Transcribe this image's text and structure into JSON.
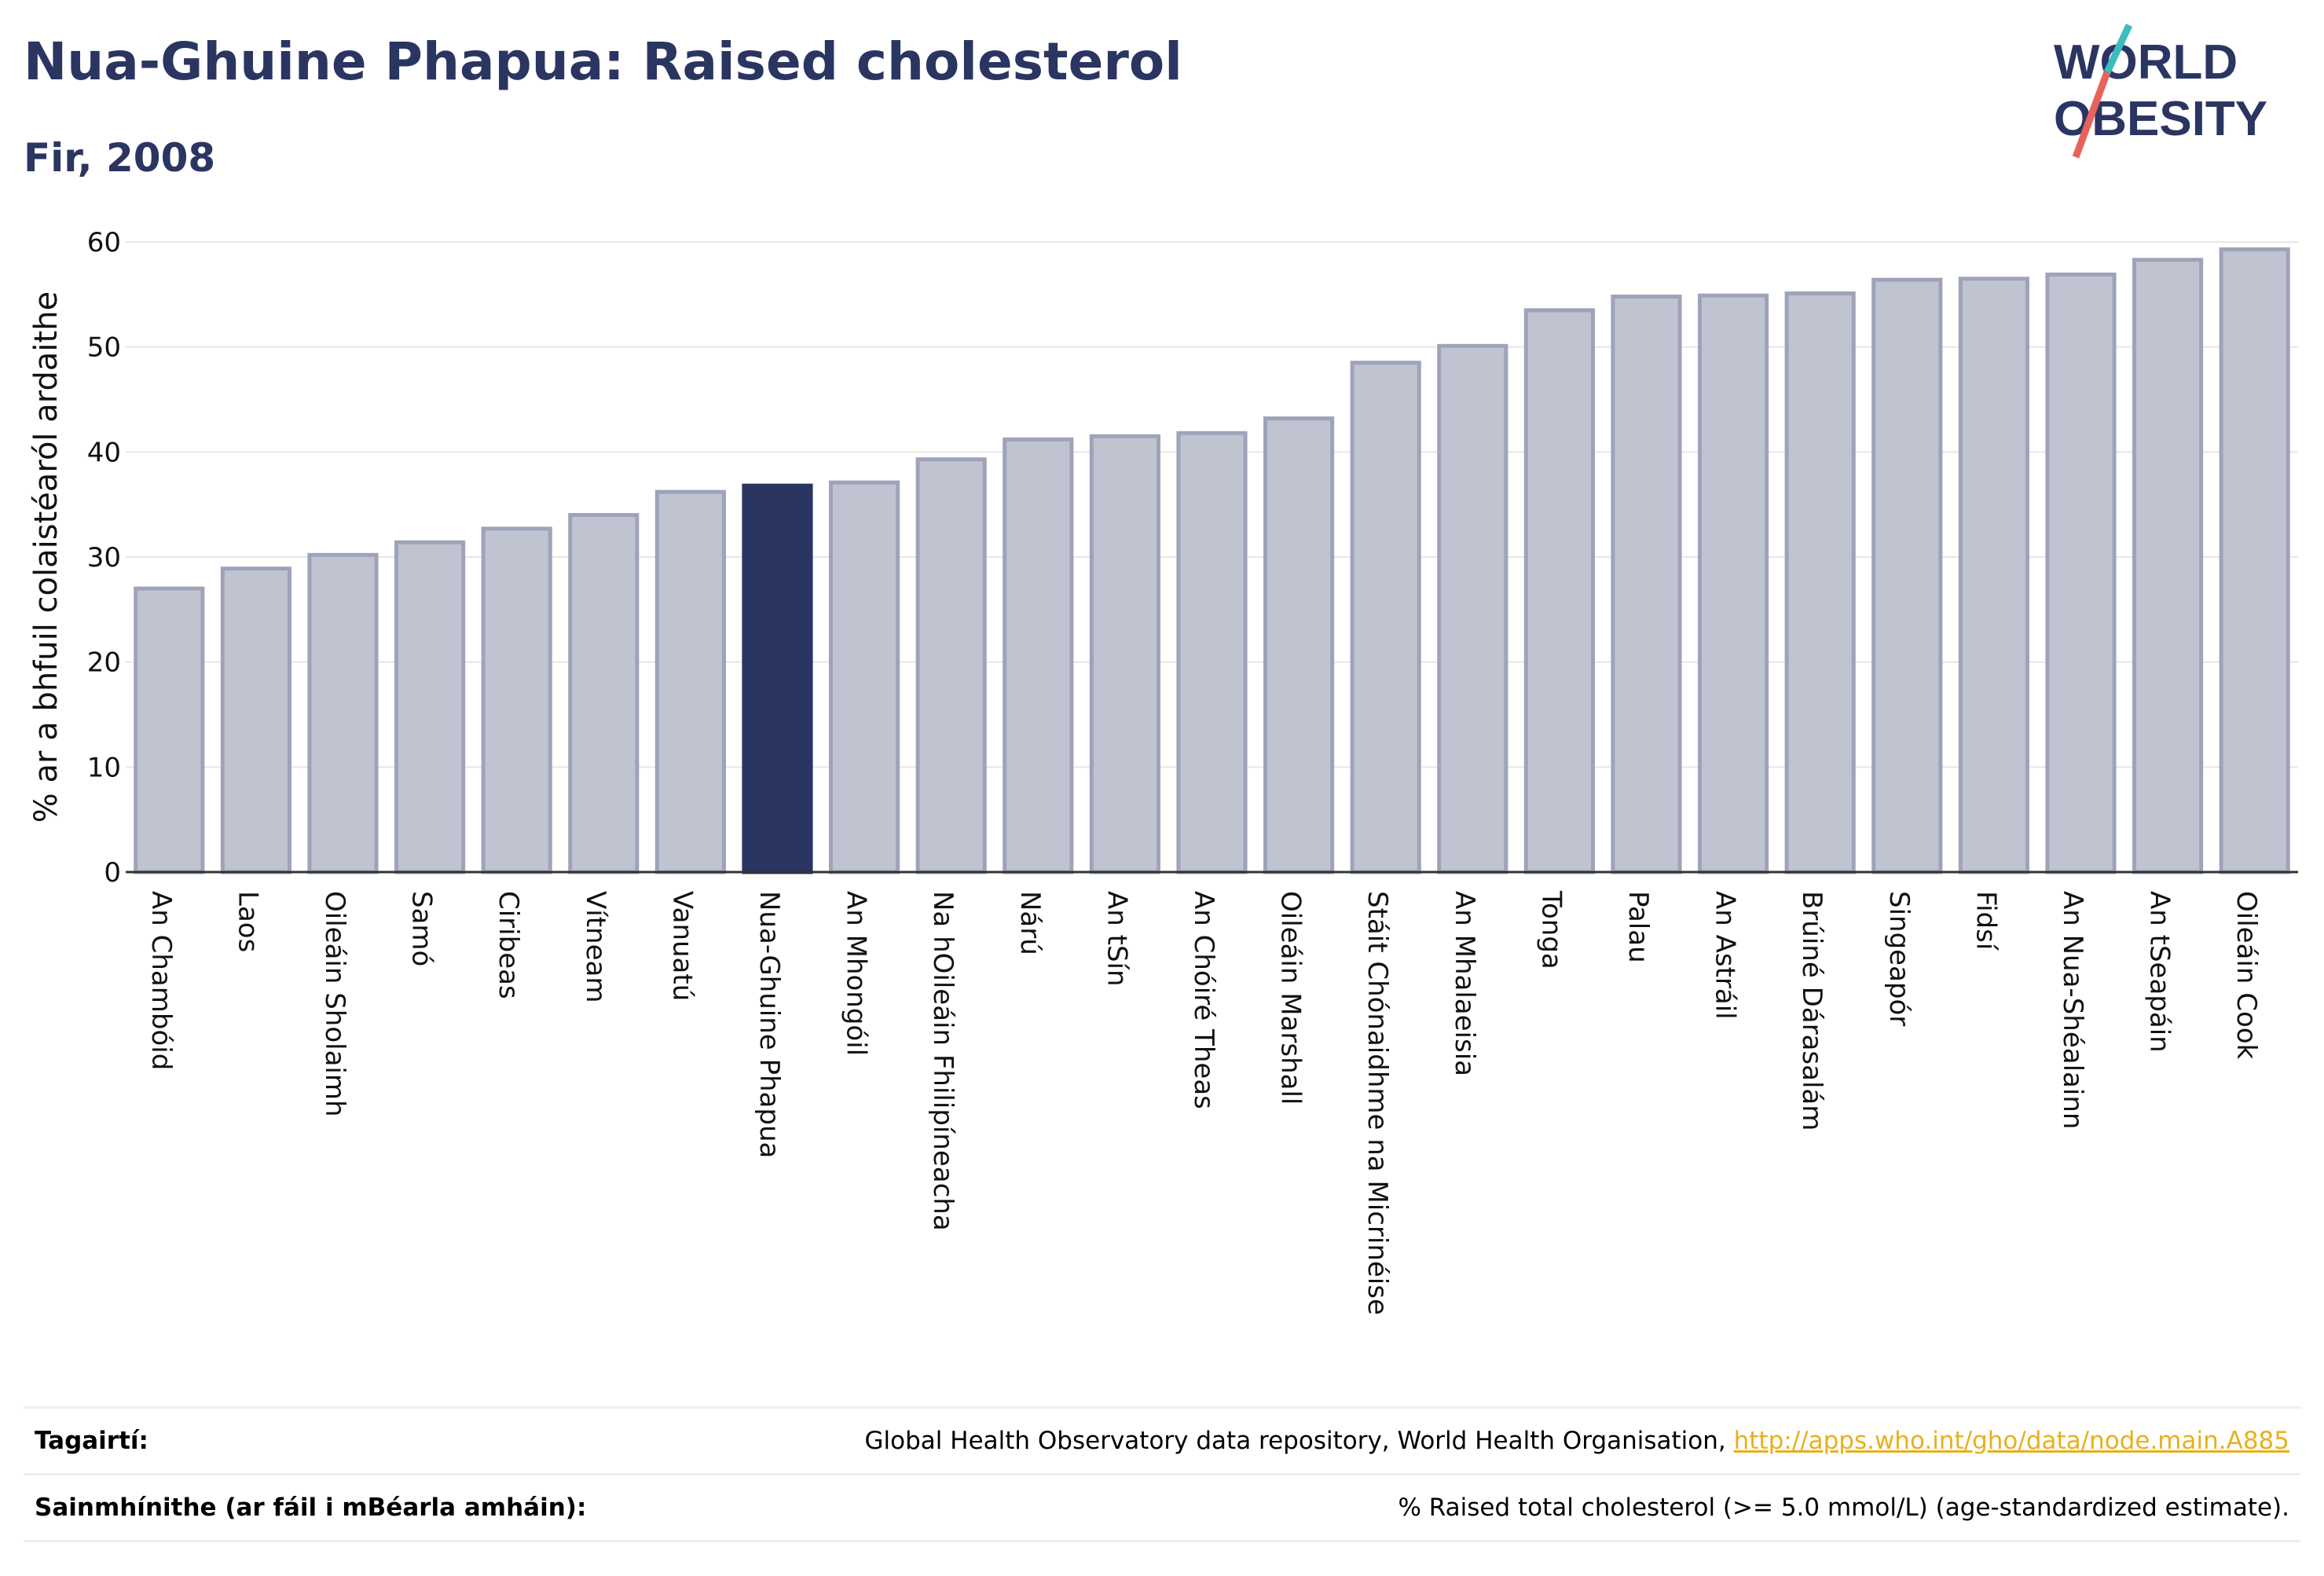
{
  "header": {
    "title": "Nua-Ghuine Phapua: Raised cholesterol",
    "subtitle": "Fir, 2008"
  },
  "logo": {
    "line1": "WORLD",
    "line2": "OBESITY",
    "colors": {
      "text": "#2b3562",
      "slash_teal": "#3cbcbc",
      "slash_red": "#e8625c"
    }
  },
  "chart_data": {
    "type": "bar",
    "title": "Nua-Ghuine Phapua: Raised cholesterol",
    "subtitle": "Fir, 2008",
    "xlabel": "",
    "ylabel": "% ar a bhfuil colaistéaról ardaithe",
    "ylim": [
      0,
      60
    ],
    "yticks": [
      0,
      10,
      20,
      30,
      40,
      50,
      60
    ],
    "grid": true,
    "highlight": "Nua-Ghuine Phapua",
    "colors": {
      "bar": "#c0c3d0",
      "bar_edge": "#9ea3ba",
      "highlight": "#2b3562"
    },
    "categories": [
      "An Chambóid",
      "Laos",
      "Oileáin Sholaimh",
      "Samó",
      "Ciribeas",
      "Vítneam",
      "Vanuatú",
      "Nua-Ghuine Phapua",
      "An Mhongóil",
      "Na hOileáin Fhilipíneacha",
      "Nárú",
      "An tSín",
      "An Chóiré Theas",
      "Oileáin Marshall",
      "Stáit Chónaidhme na Micrinéise",
      "An Mhalaeisia",
      "Tonga",
      "Palau",
      "An Astráil",
      "Brúiné Dárasalám",
      "Singeapór",
      "Fidsí",
      "An Nua-Shéalainn",
      "An tSeapáin",
      "Oileáin Cook"
    ],
    "values": [
      27.0,
      28.9,
      30.2,
      31.4,
      32.7,
      34.0,
      36.2,
      36.8,
      37.1,
      39.3,
      41.2,
      41.5,
      41.8,
      43.2,
      48.5,
      50.1,
      53.5,
      54.8,
      54.9,
      55.1,
      56.4,
      56.5,
      56.9,
      58.3,
      59.3
    ]
  },
  "footer": {
    "references_label": "Tagairtí:",
    "references_text": "Global Health Observatory data repository, World Health Organisation, ",
    "references_link": "http://apps.who.int/gho/data/node.main.A885",
    "definitions_label": "Sainmhínithe (ar fáil i mBéarla amháin):",
    "definitions_text": "% Raised total cholesterol (>= 5.0 mmol/L) (age-standardized estimate)."
  }
}
